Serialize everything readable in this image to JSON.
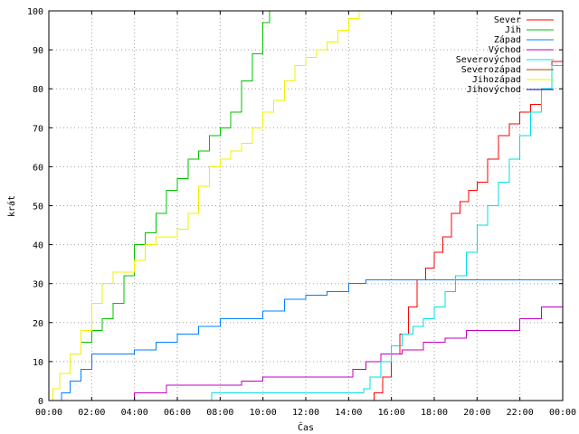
{
  "chart_data": {
    "type": "line",
    "xlabel": "Čas",
    "ylabel": "krát",
    "xlim": [
      0,
      24
    ],
    "ylim": [
      0,
      100
    ],
    "x_ticks": [
      0,
      2,
      4,
      6,
      8,
      10,
      12,
      14,
      16,
      18,
      20,
      22,
      24
    ],
    "x_tick_labels": [
      "00:00",
      "02:00",
      "04:00",
      "06:00",
      "08:00",
      "10:00",
      "12:00",
      "14:00",
      "16:00",
      "18:00",
      "20:00",
      "22:00",
      "00:00"
    ],
    "y_ticks": [
      0,
      10,
      20,
      30,
      40,
      50,
      60,
      70,
      80,
      90,
      100
    ],
    "y_tick_labels": [
      "0",
      "10",
      "20",
      "30",
      "40",
      "50",
      "60",
      "70",
      "80",
      "90",
      "100"
    ],
    "grid": true,
    "legend_position": "top-right",
    "series": [
      {
        "name": "Sever",
        "color": "#ff0000",
        "x": [
          0,
          14.8,
          15.2,
          15.6,
          16.0,
          16.4,
          16.8,
          17.2,
          17.6,
          18.0,
          18.4,
          18.8,
          19.2,
          19.6,
          20.0,
          20.5,
          21.0,
          21.5,
          22.0,
          22.5,
          23.0,
          23.5,
          24.0
        ],
        "y": [
          0,
          0,
          2,
          6,
          12,
          17,
          24,
          31,
          34,
          38,
          42,
          48,
          51,
          54,
          56,
          62,
          68,
          71,
          74,
          76,
          80,
          87,
          91
        ]
      },
      {
        "name": "Jih",
        "color": "#00c000",
        "x": [
          0,
          0.2,
          0.5,
          1.0,
          1.5,
          2.0,
          2.5,
          3.0,
          3.5,
          4.0,
          4.5,
          5.0,
          5.5,
          6.0,
          6.5,
          7.0,
          7.5,
          8.0,
          8.5,
          9.0,
          9.5,
          10.0,
          10.3
        ],
        "y": [
          0,
          3,
          7,
          12,
          15,
          18,
          21,
          25,
          32,
          40,
          43,
          48,
          54,
          57,
          62,
          64,
          68,
          70,
          74,
          82,
          89,
          97,
          100
        ]
      },
      {
        "name": "Západ",
        "color": "#0080ff",
        "x": [
          0,
          0.6,
          1.0,
          1.5,
          2.0,
          3.0,
          4.0,
          5.0,
          6.0,
          7.0,
          8.0,
          9.0,
          10.0,
          11.0,
          12.0,
          13.0,
          14.0,
          14.8,
          16.0,
          18.0,
          20.0,
          22.0,
          24.0
        ],
        "y": [
          0,
          2,
          5,
          8,
          12,
          12,
          13,
          15,
          17,
          19,
          21,
          21,
          23,
          26,
          27,
          28,
          30,
          31,
          31,
          31,
          31,
          31,
          31
        ]
      },
      {
        "name": "Východ",
        "color": "#c000c0",
        "x": [
          0,
          3.9,
          4.0,
          5.0,
          5.5,
          7.0,
          8.0,
          9.0,
          10.0,
          12.0,
          13.5,
          14.2,
          14.8,
          15.5,
          16.5,
          17.5,
          18.5,
          19.5,
          20.5,
          22.0,
          23.0,
          24.0
        ],
        "y": [
          0,
          0,
          2,
          2,
          4,
          4,
          4,
          5,
          6,
          6,
          6,
          8,
          10,
          12,
          13,
          15,
          16,
          18,
          18,
          21,
          24,
          26
        ]
      },
      {
        "name": "Severovýchod",
        "color": "#00e0e0",
        "x": [
          0,
          7.5,
          7.6,
          10.0,
          12.0,
          14.0,
          14.7,
          15.0,
          15.5,
          16.0,
          16.5,
          17.0,
          17.5,
          18.0,
          18.5,
          19.0,
          19.5,
          20.0,
          20.5,
          21.0,
          21.5,
          22.0,
          22.5,
          23.0,
          23.5,
          24.0
        ],
        "y": [
          0,
          0,
          2,
          2,
          2,
          2,
          3,
          6,
          10,
          14,
          17,
          19,
          21,
          24,
          28,
          32,
          38,
          45,
          50,
          56,
          62,
          68,
          74,
          80,
          86,
          90
        ]
      },
      {
        "name": "Severozápad",
        "color": "#c04000",
        "x": [
          0,
          24
        ],
        "y": [
          0,
          0
        ]
      },
      {
        "name": "Jihozápad",
        "color": "#f0f000",
        "x": [
          0,
          0.2,
          0.5,
          1.0,
          1.5,
          2.0,
          2.5,
          3.0,
          3.5,
          4.0,
          4.5,
          5.0,
          5.5,
          6.0,
          6.5,
          7.0,
          7.5,
          8.0,
          8.5,
          9.0,
          9.5,
          10.0,
          10.5,
          11.0,
          11.5,
          12.0,
          12.5,
          13.0,
          13.5,
          14.0,
          14.5
        ],
        "y": [
          0,
          3,
          7,
          12,
          18,
          25,
          30,
          33,
          33,
          36,
          40,
          42,
          42,
          44,
          48,
          55,
          60,
          62,
          64,
          66,
          70,
          74,
          77,
          82,
          86,
          88,
          90,
          92,
          95,
          98,
          100
        ]
      },
      {
        "name": "Jihovýchod",
        "color": "#0000c0",
        "x": [
          0,
          24
        ],
        "y": [
          0,
          0
        ]
      }
    ]
  }
}
